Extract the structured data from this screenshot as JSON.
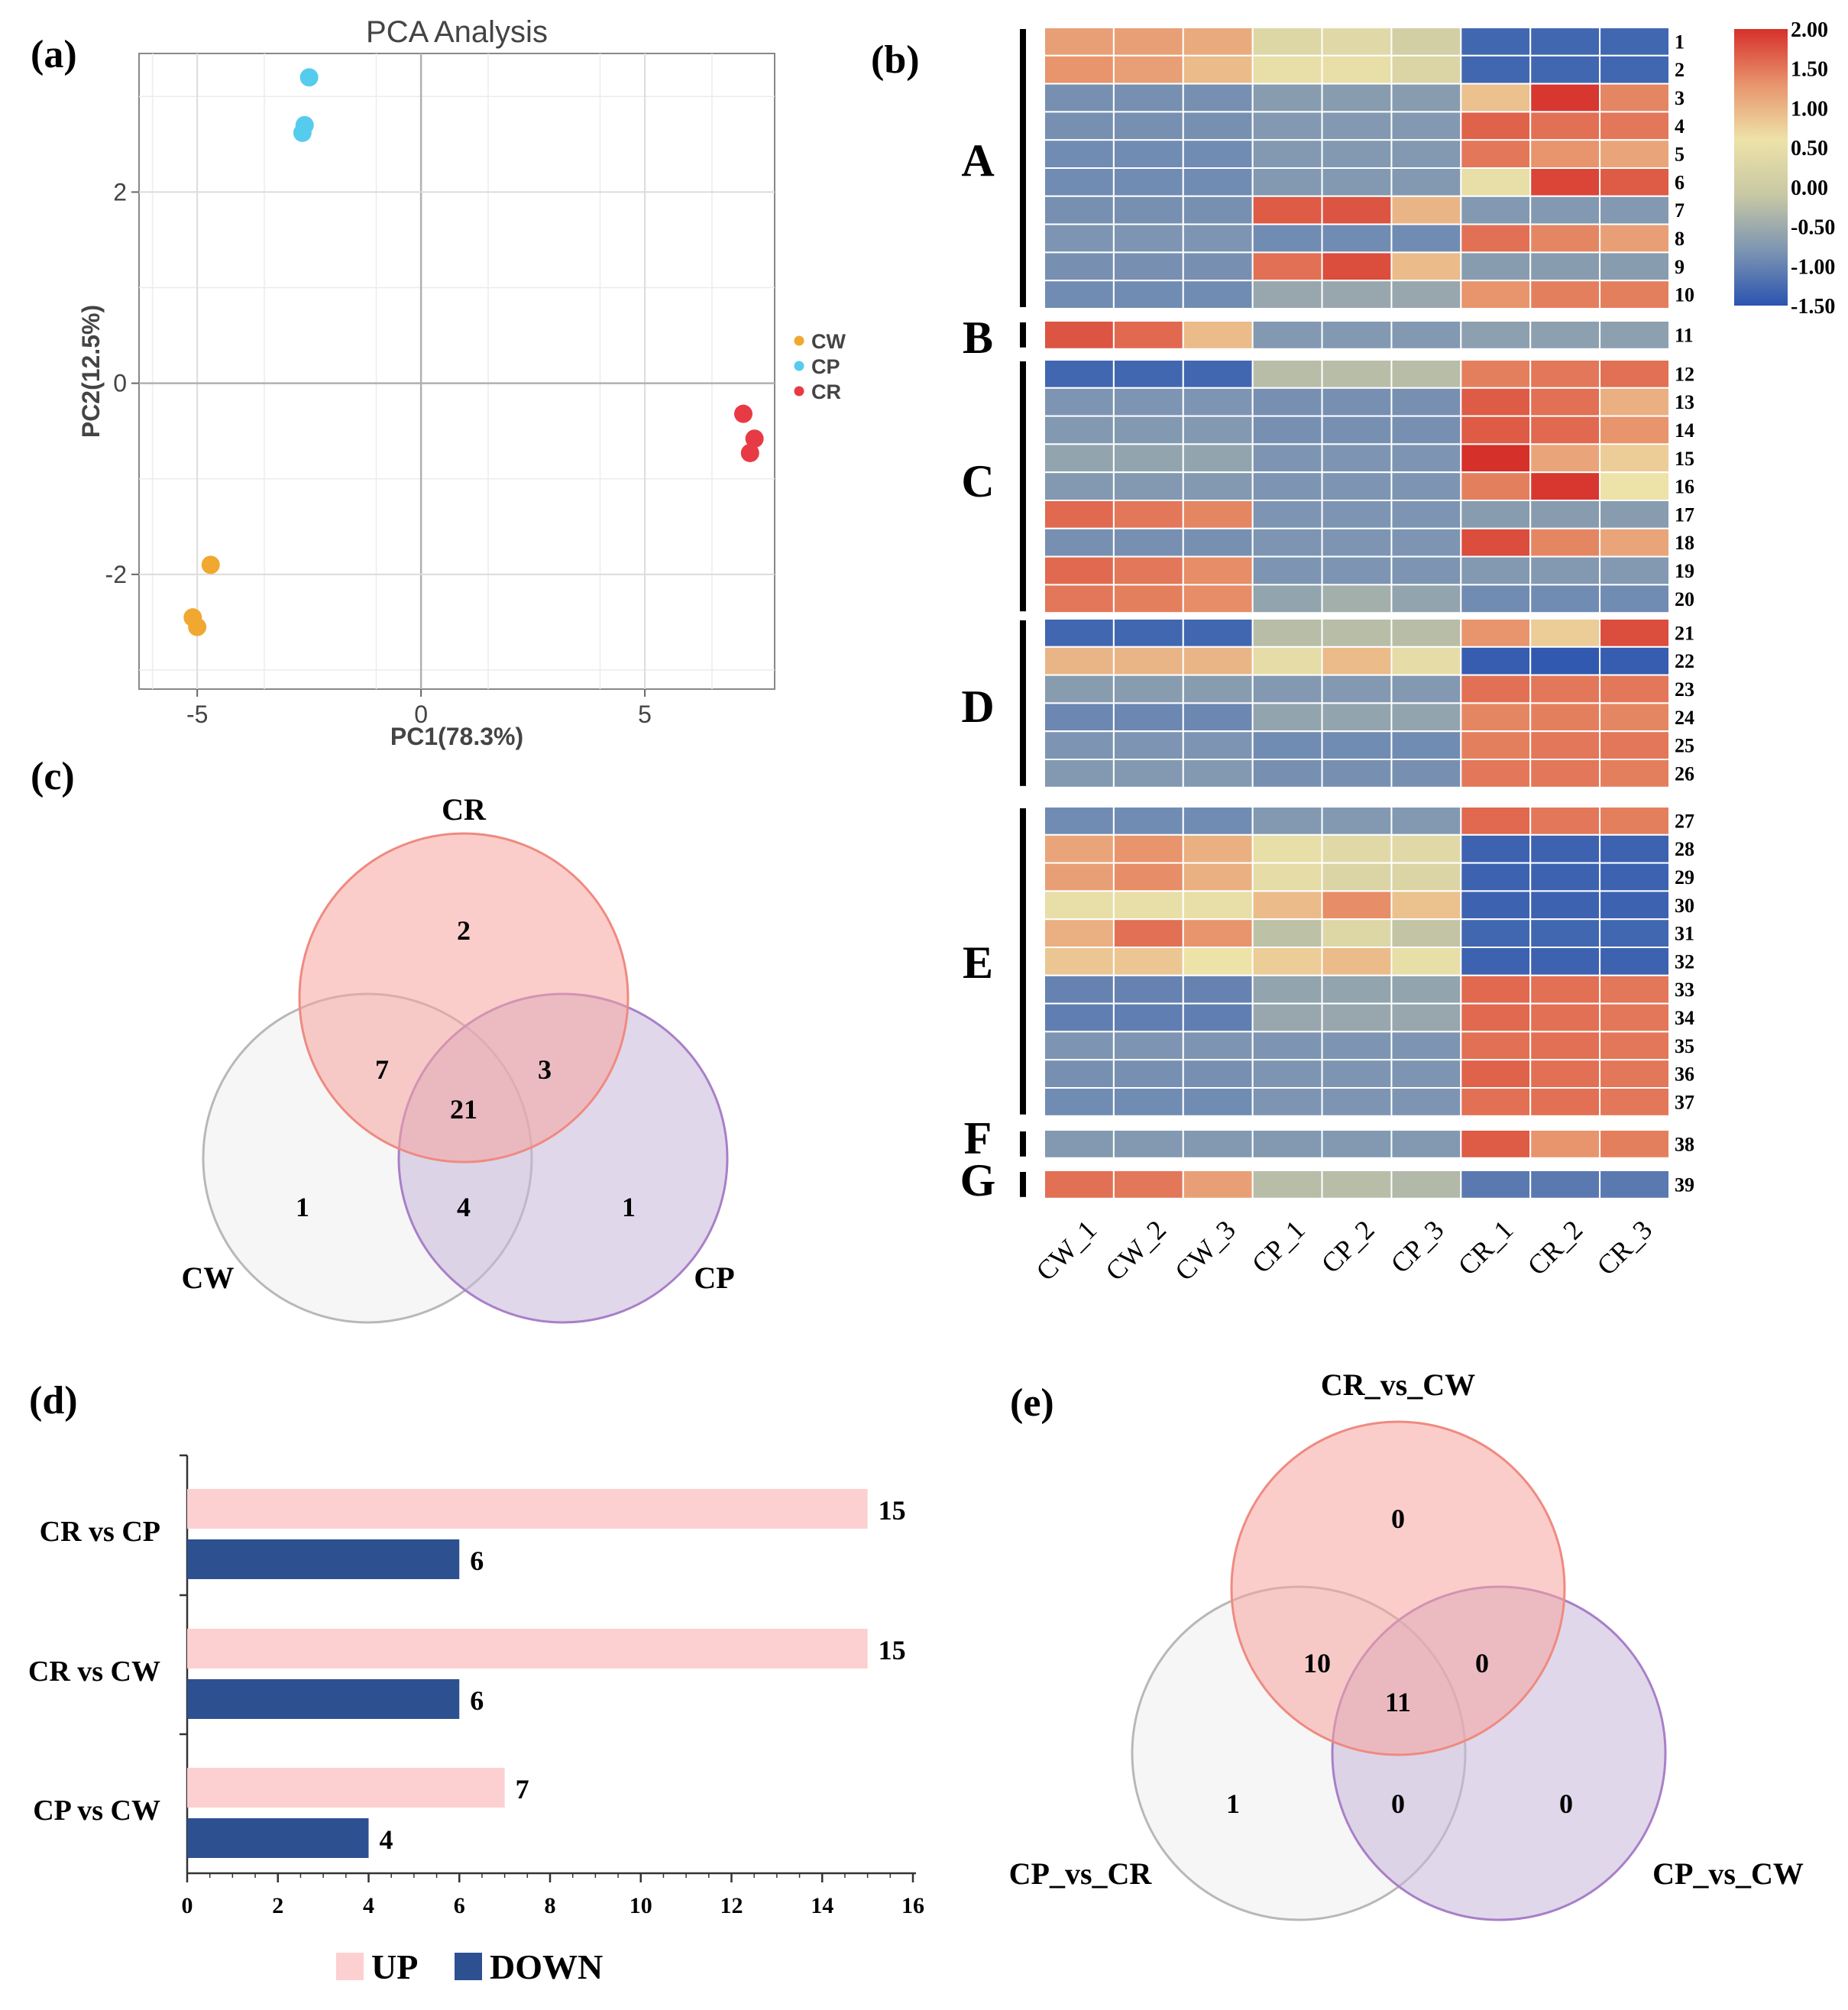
{
  "panels": {
    "a": {
      "label": "(a)"
    },
    "b": {
      "label": "(b)"
    },
    "c": {
      "label": "(c)"
    },
    "d": {
      "label": "(d)"
    },
    "e": {
      "label": "(e)"
    }
  },
  "chart_data": [
    {
      "id": "a",
      "type": "scatter",
      "title": "PCA Analysis",
      "xlabel": "PC1(78.3%)",
      "ylabel": "PC2(12.5%)",
      "xlim": [
        -6.3,
        7.9
      ],
      "ylim": [
        -3.2,
        3.45
      ],
      "xticks": [
        -5,
        0,
        5
      ],
      "yticks": [
        -2,
        0,
        2
      ],
      "grid": true,
      "legend_position": "right",
      "series": [
        {
          "name": "CW",
          "color": "#f0a830",
          "points": [
            [
              -4.7,
              -1.9
            ],
            [
              -5.1,
              -2.45
            ],
            [
              -5.0,
              -2.55
            ]
          ]
        },
        {
          "name": "CP",
          "color": "#55ccee",
          "points": [
            [
              -2.5,
              3.2
            ],
            [
              -2.6,
              2.7
            ],
            [
              -2.65,
              2.62
            ]
          ]
        },
        {
          "name": "CR",
          "color": "#e83a45",
          "points": [
            [
              7.2,
              -0.32
            ],
            [
              7.45,
              -0.58
            ],
            [
              7.35,
              -0.73
            ]
          ]
        }
      ]
    },
    {
      "id": "b",
      "type": "heatmap",
      "columns": [
        "CW_1",
        "CW_2",
        "CW_3",
        "CP_1",
        "CP_2",
        "CP_3",
        "CR_1",
        "CR_2",
        "CR_3"
      ],
      "colorbar": {
        "min": -1.5,
        "max": 2.0,
        "tick_values": [
          2.0,
          1.5,
          1.0,
          0.5,
          0.0,
          -0.5,
          -1.0,
          -1.5
        ],
        "tick_labels": [
          "2.00",
          "1.50",
          "1.00",
          "0.50",
          "0.00",
          "-0.50",
          "-1.00",
          "-1.50"
        ],
        "colors": [
          "#2b54b0",
          "#7d95b2",
          "#c8c8a4",
          "#ede2a8",
          "#e8946c",
          "#d6302a"
        ]
      },
      "clusters": [
        {
          "name": "A",
          "rows": [
            1,
            10
          ]
        },
        {
          "name": "B",
          "rows": [
            11,
            11
          ]
        },
        {
          "name": "C",
          "rows": [
            12,
            20
          ]
        },
        {
          "name": "D",
          "rows": [
            21,
            26
          ]
        },
        {
          "name": "E",
          "rows": [
            27,
            37
          ]
        },
        {
          "name": "F",
          "rows": [
            38,
            38
          ]
        },
        {
          "name": "G",
          "rows": [
            39,
            39
          ]
        }
      ],
      "rows": [
        {
          "label": "1",
          "values": [
            1.2,
            1.2,
            1.1,
            0.3,
            0.35,
            0.1,
            -1.3,
            -1.3,
            -1.3
          ]
        },
        {
          "label": "2",
          "values": [
            1.3,
            1.2,
            0.95,
            0.5,
            0.5,
            0.25,
            -1.3,
            -1.3,
            -1.3
          ]
        },
        {
          "label": "3",
          "values": [
            -0.85,
            -0.85,
            -0.85,
            -0.7,
            -0.7,
            -0.7,
            0.9,
            1.95,
            1.4
          ]
        },
        {
          "label": "4",
          "values": [
            -0.85,
            -0.85,
            -0.85,
            -0.75,
            -0.75,
            -0.75,
            1.65,
            1.55,
            1.5
          ]
        },
        {
          "label": "5",
          "values": [
            -0.9,
            -0.9,
            -0.9,
            -0.75,
            -0.75,
            -0.75,
            1.5,
            1.3,
            1.15
          ]
        },
        {
          "label": "6",
          "values": [
            -0.9,
            -0.9,
            -0.9,
            -0.75,
            -0.75,
            -0.75,
            0.5,
            1.85,
            1.7
          ]
        },
        {
          "label": "7",
          "values": [
            -0.85,
            -0.85,
            -0.85,
            1.7,
            1.75,
            1.0,
            -0.75,
            -0.75,
            -0.75
          ]
        },
        {
          "label": "8",
          "values": [
            -0.8,
            -0.8,
            -0.8,
            -0.9,
            -0.9,
            -0.9,
            1.55,
            1.4,
            1.2
          ]
        },
        {
          "label": "9",
          "values": [
            -0.85,
            -0.85,
            -0.85,
            1.55,
            1.8,
            0.95,
            -0.7,
            -0.7,
            -0.7
          ]
        },
        {
          "label": "10",
          "values": [
            -0.9,
            -0.9,
            -0.9,
            -0.55,
            -0.55,
            -0.55,
            1.3,
            1.45,
            1.45
          ]
        },
        {
          "label": "11",
          "values": [
            1.75,
            1.6,
            0.95,
            -0.75,
            -0.75,
            -0.75,
            -0.65,
            -0.65,
            -0.65
          ]
        },
        {
          "label": "12",
          "values": [
            -1.3,
            -1.3,
            -1.3,
            -0.25,
            -0.25,
            -0.25,
            1.45,
            1.5,
            1.55
          ]
        },
        {
          "label": "13",
          "values": [
            -0.8,
            -0.8,
            -0.8,
            -0.85,
            -0.85,
            -0.85,
            1.7,
            1.55,
            1.05
          ]
        },
        {
          "label": "14",
          "values": [
            -0.75,
            -0.75,
            -0.75,
            -0.85,
            -0.85,
            -0.85,
            1.7,
            1.6,
            1.3
          ]
        },
        {
          "label": "15",
          "values": [
            -0.6,
            -0.6,
            -0.6,
            -0.8,
            -0.8,
            -0.8,
            2.0,
            1.15,
            0.8
          ]
        },
        {
          "label": "16",
          "values": [
            -0.75,
            -0.75,
            -0.75,
            -0.8,
            -0.8,
            -0.8,
            1.45,
            1.95,
            0.6
          ]
        },
        {
          "label": "17",
          "values": [
            1.6,
            1.5,
            1.4,
            -0.8,
            -0.8,
            -0.8,
            -0.7,
            -0.7,
            -0.7
          ]
        },
        {
          "label": "18",
          "values": [
            -0.85,
            -0.85,
            -0.85,
            -0.8,
            -0.8,
            -0.8,
            1.8,
            1.4,
            1.15
          ]
        },
        {
          "label": "19",
          "values": [
            1.6,
            1.5,
            1.35,
            -0.8,
            -0.8,
            -0.8,
            -0.75,
            -0.75,
            -0.75
          ]
        },
        {
          "label": "20",
          "values": [
            1.5,
            1.45,
            1.35,
            -0.6,
            -0.45,
            -0.6,
            -0.9,
            -0.9,
            -0.9
          ]
        },
        {
          "label": "21",
          "values": [
            -1.3,
            -1.3,
            -1.3,
            -0.25,
            -0.25,
            -0.25,
            1.3,
            0.8,
            1.8
          ]
        },
        {
          "label": "22",
          "values": [
            1.0,
            1.0,
            1.0,
            0.45,
            0.95,
            0.45,
            -1.4,
            -1.45,
            -1.4
          ]
        },
        {
          "label": "23",
          "values": [
            -0.7,
            -0.7,
            -0.7,
            -0.75,
            -0.75,
            -0.75,
            1.55,
            1.5,
            1.5
          ]
        },
        {
          "label": "24",
          "values": [
            -0.95,
            -0.95,
            -0.95,
            -0.6,
            -0.6,
            -0.6,
            1.4,
            1.45,
            1.4
          ]
        },
        {
          "label": "25",
          "values": [
            -0.8,
            -0.8,
            -0.8,
            -0.9,
            -0.9,
            -0.9,
            1.45,
            1.5,
            1.5
          ]
        },
        {
          "label": "26",
          "values": [
            -0.75,
            -0.75,
            -0.75,
            -0.85,
            -0.85,
            -0.85,
            1.5,
            1.5,
            1.45
          ]
        },
        {
          "label": "27",
          "values": [
            -0.9,
            -0.9,
            -0.9,
            -0.75,
            -0.75,
            -0.75,
            1.6,
            1.5,
            1.45
          ]
        },
        {
          "label": "28",
          "values": [
            1.15,
            1.3,
            1.05,
            0.5,
            0.35,
            0.35,
            -1.35,
            -1.35,
            -1.35
          ]
        },
        {
          "label": "29",
          "values": [
            1.2,
            1.35,
            1.05,
            0.45,
            0.25,
            0.25,
            -1.35,
            -1.35,
            -1.35
          ]
        },
        {
          "label": "30",
          "values": [
            0.5,
            0.5,
            0.5,
            0.95,
            1.35,
            0.9,
            -1.35,
            -1.35,
            -1.35
          ]
        },
        {
          "label": "31",
          "values": [
            1.05,
            1.55,
            1.3,
            -0.2,
            0.3,
            -0.15,
            -1.3,
            -1.3,
            -1.3
          ]
        },
        {
          "label": "32",
          "values": [
            0.85,
            0.85,
            0.6,
            0.8,
            0.95,
            0.5,
            -1.35,
            -1.35,
            -1.35
          ]
        },
        {
          "label": "33",
          "values": [
            -1.0,
            -1.0,
            -1.0,
            -0.6,
            -0.6,
            -0.6,
            1.6,
            1.55,
            1.5
          ]
        },
        {
          "label": "34",
          "values": [
            -1.05,
            -1.05,
            -1.05,
            -0.55,
            -0.55,
            -0.55,
            1.6,
            1.55,
            1.5
          ]
        },
        {
          "label": "35",
          "values": [
            -0.8,
            -0.8,
            -0.8,
            -0.8,
            -0.8,
            -0.8,
            1.55,
            1.55,
            1.5
          ]
        },
        {
          "label": "36",
          "values": [
            -0.85,
            -0.85,
            -0.85,
            -0.8,
            -0.8,
            -0.8,
            1.65,
            1.55,
            1.5
          ]
        },
        {
          "label": "37",
          "values": [
            -0.9,
            -0.9,
            -0.9,
            -0.8,
            -0.8,
            -0.8,
            1.55,
            1.55,
            1.5
          ]
        },
        {
          "label": "38",
          "values": [
            -0.75,
            -0.75,
            -0.75,
            -0.75,
            -0.75,
            -0.75,
            1.7,
            1.3,
            1.45
          ]
        },
        {
          "label": "39",
          "values": [
            1.55,
            1.5,
            1.2,
            -0.25,
            -0.25,
            -0.3,
            -1.1,
            -1.1,
            -1.1
          ]
        }
      ]
    },
    {
      "id": "c",
      "type": "venn",
      "sets": [
        {
          "name": "CR",
          "color": "#f6a4a0",
          "edge": "#ef8a80"
        },
        {
          "name": "CW",
          "color": "#eeeeee",
          "edge": "#b8b8b8"
        },
        {
          "name": "CP",
          "color": "#c6b6db",
          "edge": "#a97fc8"
        }
      ],
      "regions": {
        "CR_only": "2",
        "CW_only": "1",
        "CP_only": "1",
        "CR_CW": "7",
        "CR_CP": "3",
        "CW_CP": "4",
        "all": "21"
      }
    },
    {
      "id": "d",
      "type": "bar",
      "orientation": "horizontal",
      "categories": [
        "CR vs CP",
        "CR vs CW",
        "CP vs CW"
      ],
      "series": [
        {
          "name": "UP",
          "color": "#fcd0d0",
          "values": [
            15,
            15,
            7
          ]
        },
        {
          "name": "DOWN",
          "color": "#2d5090",
          "values": [
            6,
            6,
            4
          ]
        }
      ],
      "xlim": [
        0,
        16
      ],
      "xticks": [
        0,
        2,
        4,
        6,
        8,
        10,
        12,
        14,
        16
      ],
      "legend_position": "bottom"
    },
    {
      "id": "e",
      "type": "venn",
      "sets": [
        {
          "name": "CR_vs_CW",
          "color": "#f6a4a0",
          "edge": "#ef8a80"
        },
        {
          "name": "CP_vs_CR",
          "color": "#eeeeee",
          "edge": "#b8b8b8"
        },
        {
          "name": "CP_vs_CW",
          "color": "#c6b6db",
          "edge": "#a97fc8"
        }
      ],
      "regions": {
        "CR_only": "0",
        "CW_only": "1",
        "CP_only": "0",
        "CR_CW": "10",
        "CR_CP": "0",
        "CW_CP": "0",
        "all": "11"
      }
    }
  ]
}
